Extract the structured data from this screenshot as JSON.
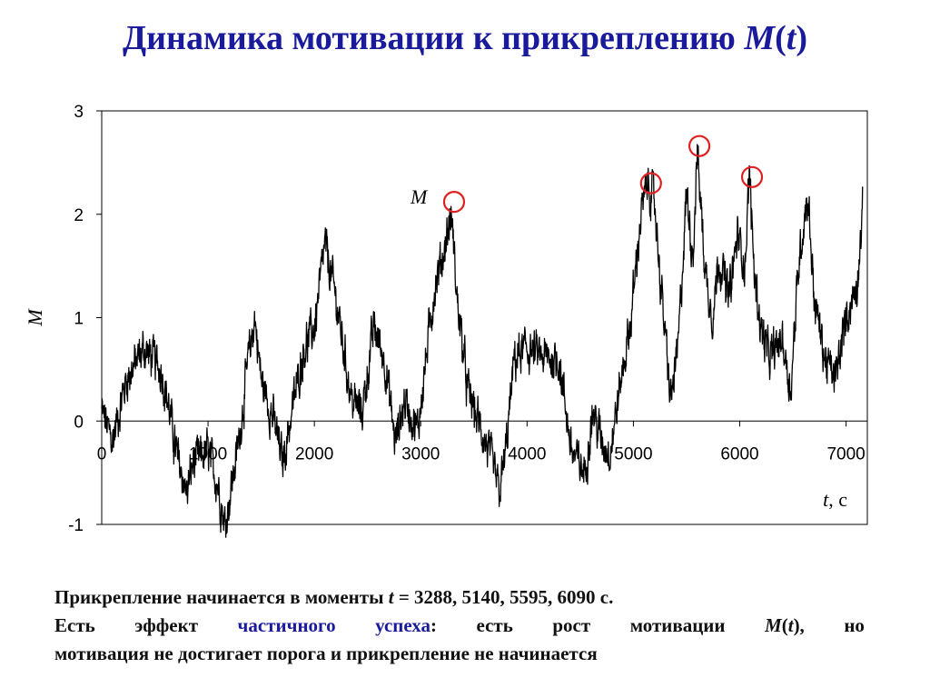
{
  "title": {
    "text": "Динамика мотивации к прикреплению ",
    "var": "M",
    "open": "(",
    "arg": "t",
    "close": ")"
  },
  "chart_data": {
    "type": "line",
    "ylabel": "M",
    "xlabel_var": "t",
    "xlabel_unit": ", с",
    "series_label": "M",
    "xlim": [
      0,
      7200
    ],
    "ylim": [
      -1,
      3
    ],
    "xticks": [
      0,
      1000,
      2000,
      3000,
      4000,
      5000,
      6000,
      7000
    ],
    "yticks": [
      -1,
      0,
      1,
      2,
      3
    ],
    "grid": false,
    "line_color": "#000000",
    "marker_color": "#e02020",
    "key_points": {
      "t": [
        0,
        100,
        230,
        400,
        560,
        620,
        700,
        800,
        860,
        1000,
        1090,
        1160,
        1290,
        1380,
        1440,
        1500,
        1620,
        1700,
        1900,
        2000,
        2100,
        2200,
        2290,
        2350,
        2450,
        2560,
        2660,
        2760,
        2850,
        2970,
        3050,
        3130,
        3210,
        3290,
        3340,
        3440,
        3540,
        3640,
        3740,
        3800,
        3880,
        4000,
        4160,
        4300,
        4420,
        4540,
        4620,
        4700,
        4780,
        4900,
        4980,
        5070,
        5140,
        5200,
        5260,
        5350,
        5420,
        5500,
        5560,
        5600,
        5680,
        5750,
        5800,
        5900,
        5980,
        6050,
        6090,
        6140,
        6200,
        6280,
        6400,
        6480,
        6560,
        6640,
        6700,
        6800,
        6900,
        7000,
        7100,
        7160
      ],
      "M": [
        0.1,
        -0.2,
        0.4,
        0.7,
        0.5,
        0.2,
        -0.3,
        -0.7,
        -0.4,
        -0.3,
        -0.6,
        -1.0,
        -0.2,
        0.6,
        1.0,
        0.4,
        0.0,
        -0.4,
        0.7,
        0.9,
        1.7,
        1.2,
        0.6,
        0.2,
        0.1,
        0.9,
        0.6,
        -0.2,
        0.2,
        -0.1,
        0.6,
        1.3,
        1.6,
        2.0,
        1.2,
        0.3,
        0.0,
        -0.3,
        -0.7,
        -0.3,
        0.6,
        0.7,
        0.6,
        0.6,
        -0.3,
        -0.5,
        0.1,
        -0.2,
        -0.3,
        0.5,
        1.0,
        2.0,
        2.3,
        2.1,
        1.3,
        0.2,
        0.7,
        2.2,
        1.6,
        2.6,
        1.4,
        1.0,
        1.6,
        1.2,
        1.8,
        1.5,
        2.4,
        1.4,
        0.9,
        0.6,
        0.8,
        0.3,
        1.6,
        2.2,
        1.2,
        0.6,
        0.4,
        1.0,
        1.3,
        2.1
      ]
    },
    "markers": [
      {
        "t": 3288,
        "M": 2.12
      },
      {
        "t": 5140,
        "M": 2.3
      },
      {
        "t": 5595,
        "M": 2.66
      },
      {
        "t": 6090,
        "M": 2.36
      }
    ]
  },
  "text": {
    "line1_a": "Прикрепление начинается в моменты ",
    "line1_var": "t",
    "line1_b": " = 3288, 5140, 5595, 6090 с.",
    "line2": [
      {
        "text": "Есть",
        "hl": false,
        "it": false
      },
      {
        "text": "эффект",
        "hl": false,
        "it": false
      },
      {
        "text": "частичного",
        "hl": true,
        "it": false
      },
      {
        "text": "успеха",
        "hl": true,
        "it": false,
        "tail": ":"
      },
      {
        "text": "есть",
        "hl": false,
        "it": false
      },
      {
        "text": "рост",
        "hl": false,
        "it": false
      },
      {
        "text": "мотивации",
        "hl": false,
        "it": false
      },
      {
        "text": "M",
        "hl": false,
        "it": true,
        "tail": "(",
        "tail_it": "t",
        "tail_end": "),",
        "group": true
      },
      {
        "text": "но",
        "hl": false,
        "it": false
      }
    ],
    "line3": "мотивация не достигает порога и прикрепление не начинается"
  }
}
